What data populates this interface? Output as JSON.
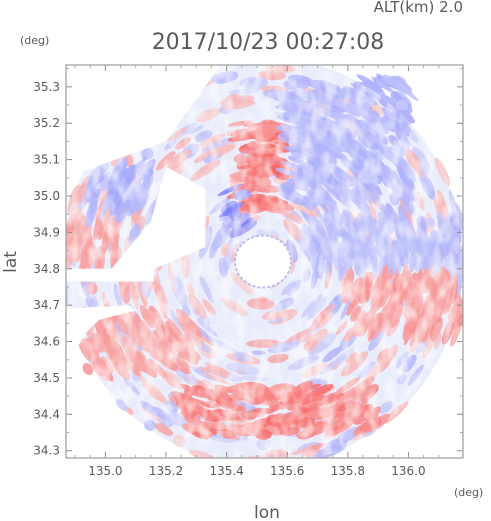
{
  "chart_data": {
    "type": "heatmap",
    "title": "2017/10/23 00:27:08",
    "altitude_label": "ALT(km)  2.0",
    "xlabel": "lon",
    "ylabel": "lat",
    "x_unit": "(deg)",
    "y_unit": "(deg)",
    "xlim": [
      134.87,
      136.18
    ],
    "ylim": [
      34.28,
      35.36
    ],
    "x_ticks": [
      "135.0",
      "135.2",
      "135.4",
      "135.6",
      "135.8",
      "136.0"
    ],
    "y_ticks": [
      "34.3",
      "34.4",
      "34.5",
      "34.6",
      "34.7",
      "34.8",
      "34.9",
      "35.0",
      "35.1",
      "35.2",
      "35.3"
    ],
    "radar_center": {
      "lon": 135.52,
      "lat": 34.82
    },
    "coverage_radius_deg": 0.66,
    "grid": false,
    "colors": {
      "approaching": "#8a8af5",
      "receding": "#f07070",
      "light_blue": "#ccd4fa",
      "light_red": "#f8c8c8",
      "frame": "#888888"
    },
    "regions": [
      {
        "name": "north-red-core",
        "lon": [
          135.44,
          135.6
        ],
        "lat": [
          34.96,
          35.2
        ],
        "sign": "positive",
        "intensity": 0.8
      },
      {
        "name": "north-blue-core",
        "lon": [
          135.4,
          135.46
        ],
        "lat": [
          34.9,
          35.02
        ],
        "sign": "negative",
        "intensity": 0.85
      },
      {
        "name": "northeast-blue-band",
        "lon": [
          135.6,
          136.0
        ],
        "lat": [
          34.98,
          35.32
        ],
        "sign": "negative",
        "intensity": 0.45
      },
      {
        "name": "east-blue-band",
        "lon": [
          135.65,
          136.18
        ],
        "lat": [
          34.8,
          34.95
        ],
        "sign": "negative",
        "intensity": 0.4
      },
      {
        "name": "east-red-band",
        "lon": [
          135.8,
          136.18
        ],
        "lat": [
          34.62,
          34.78
        ],
        "sign": "positive",
        "intensity": 0.55
      },
      {
        "name": "south-red-arc",
        "lon": [
          135.25,
          135.9
        ],
        "lat": [
          34.34,
          34.48
        ],
        "sign": "positive",
        "intensity": 0.75
      },
      {
        "name": "southwest-red",
        "lon": [
          134.93,
          135.3
        ],
        "lat": [
          34.52,
          34.68
        ],
        "sign": "positive",
        "intensity": 0.5
      },
      {
        "name": "west-red",
        "lon": [
          134.87,
          135.05
        ],
        "lat": [
          34.82,
          34.92
        ],
        "sign": "positive",
        "intensity": 0.45
      },
      {
        "name": "northwest-blue",
        "lon": [
          134.95,
          135.15
        ],
        "lat": [
          34.95,
          35.08
        ],
        "sign": "negative",
        "intensity": 0.5
      }
    ]
  }
}
